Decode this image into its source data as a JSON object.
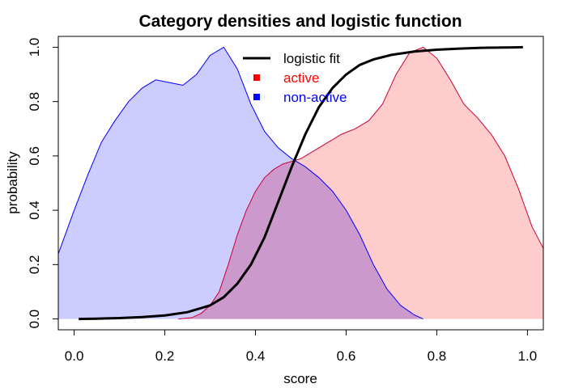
{
  "chart_data": {
    "type": "area",
    "title": "Category densities and logistic function",
    "xlabel": "score",
    "ylabel": "probability",
    "xlim": [
      -0.035,
      1.035
    ],
    "ylim": [
      -0.04,
      1.04
    ],
    "x_ticks": [
      "0.0",
      "0.2",
      "0.4",
      "0.6",
      "0.8",
      "1.0"
    ],
    "x_tick_values": [
      0.0,
      0.2,
      0.4,
      0.6,
      0.8,
      1.0
    ],
    "y_ticks": [
      "0.0",
      "0.2",
      "0.4",
      "0.6",
      "0.8",
      "1.0"
    ],
    "y_tick_values": [
      0.0,
      0.2,
      0.4,
      0.6,
      0.8,
      1.0
    ],
    "legend_position": "top-center",
    "series": [
      {
        "name": "non-active",
        "kind": "density",
        "fill_color": "#ccccff",
        "line_color": "#0000ff",
        "x": [
          -0.035,
          0.0,
          0.03,
          0.06,
          0.09,
          0.12,
          0.15,
          0.18,
          0.21,
          0.24,
          0.27,
          0.3,
          0.33,
          0.36,
          0.39,
          0.42,
          0.45,
          0.48,
          0.51,
          0.54,
          0.57,
          0.6,
          0.63,
          0.66,
          0.69,
          0.72,
          0.75,
          0.77
        ],
        "y": [
          0.24,
          0.4,
          0.53,
          0.65,
          0.73,
          0.8,
          0.85,
          0.88,
          0.87,
          0.86,
          0.9,
          0.97,
          1.0,
          0.92,
          0.79,
          0.69,
          0.63,
          0.59,
          0.56,
          0.52,
          0.47,
          0.4,
          0.31,
          0.2,
          0.11,
          0.05,
          0.015,
          0.0
        ]
      },
      {
        "name": "active",
        "kind": "density",
        "fill_color": "#ffcccc",
        "line_color": "#cc0033",
        "x": [
          0.23,
          0.26,
          0.28,
          0.3,
          0.32,
          0.34,
          0.36,
          0.38,
          0.4,
          0.42,
          0.44,
          0.46,
          0.48,
          0.5,
          0.53,
          0.56,
          0.59,
          0.62,
          0.65,
          0.68,
          0.71,
          0.74,
          0.77,
          0.8,
          0.83,
          0.86,
          0.89,
          0.92,
          0.95,
          0.98,
          1.01,
          1.035
        ],
        "y": [
          0.0,
          0.005,
          0.02,
          0.05,
          0.1,
          0.2,
          0.31,
          0.4,
          0.47,
          0.52,
          0.55,
          0.57,
          0.58,
          0.59,
          0.62,
          0.65,
          0.68,
          0.7,
          0.73,
          0.79,
          0.9,
          0.98,
          1.0,
          0.96,
          0.88,
          0.79,
          0.74,
          0.68,
          0.6,
          0.48,
          0.34,
          0.26
        ]
      },
      {
        "name": "logistic fit",
        "kind": "line",
        "line_color": "#000000",
        "x": [
          0.01,
          0.05,
          0.1,
          0.15,
          0.2,
          0.25,
          0.3,
          0.33,
          0.36,
          0.39,
          0.42,
          0.45,
          0.48,
          0.51,
          0.54,
          0.57,
          0.6,
          0.63,
          0.66,
          0.7,
          0.75,
          0.8,
          0.85,
          0.9,
          0.95,
          0.99
        ],
        "y": [
          0.0,
          0.001,
          0.003,
          0.007,
          0.013,
          0.025,
          0.05,
          0.08,
          0.13,
          0.2,
          0.3,
          0.43,
          0.56,
          0.68,
          0.78,
          0.85,
          0.9,
          0.935,
          0.955,
          0.972,
          0.984,
          0.991,
          0.995,
          0.998,
          0.999,
          1.0
        ]
      }
    ],
    "overlap_fill_color": "#cc99cc",
    "legend": [
      {
        "label": "logistic fit",
        "symbol": "line",
        "color": "#000000"
      },
      {
        "label": "active",
        "symbol": "square",
        "color": "#ff0000"
      },
      {
        "label": "non-active",
        "symbol": "square",
        "color": "#0000ff"
      }
    ]
  }
}
